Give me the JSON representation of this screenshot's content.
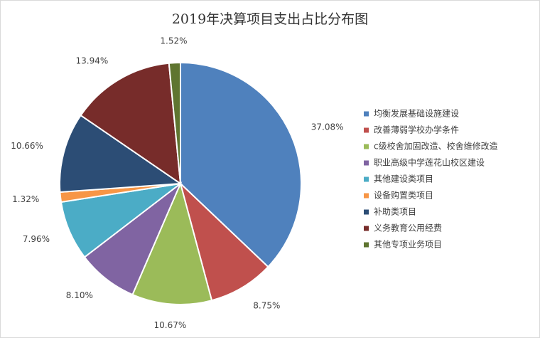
{
  "chart_data": {
    "type": "pie",
    "title": "2019年决算项目支出占比分布图",
    "categories": [
      "均衡发展基础设施建设",
      "改善薄弱学校办学条件",
      "c级校舍加固改造、校舍维修改造",
      "职业高级中学莲花山校区建设",
      "其他建设类项目",
      "设备购置类项目",
      "补助类项目",
      "义务教育公用经费",
      "其他专项业务项目"
    ],
    "values": [
      37.08,
      8.75,
      10.67,
      8.1,
      7.96,
      1.32,
      10.66,
      13.94,
      1.52
    ],
    "value_labels": [
      "37.08%",
      "8.75%",
      "10.67%",
      "8.10%",
      "7.96%",
      "1.32%",
      "10.66%",
      "13.94%",
      "1.52%"
    ],
    "colors": [
      "#4f81bd",
      "#c0504d",
      "#9bbb59",
      "#8064a2",
      "#4bacc6",
      "#f79646",
      "#2c4d75",
      "#772c2a",
      "#5f7530"
    ],
    "legend": "right"
  }
}
